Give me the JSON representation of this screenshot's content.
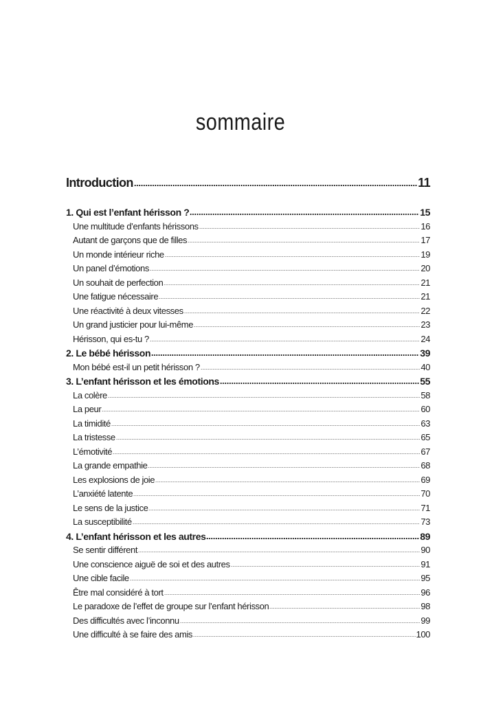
{
  "title": "sommaire",
  "introduction": {
    "label": "Introduction",
    "page": "11"
  },
  "entries": [
    {
      "type": "chapter",
      "label": "1. Qui est l’enfant hérisson ?",
      "page": "15"
    },
    {
      "type": "sub",
      "label": "Une multitude d’enfants hérissons",
      "page": "16"
    },
    {
      "type": "sub",
      "label": "Autant de garçons que de filles",
      "page": "17"
    },
    {
      "type": "sub",
      "label": "Un monde intérieur riche",
      "page": "19"
    },
    {
      "type": "sub",
      "label": "Un panel d’émotions",
      "page": "20"
    },
    {
      "type": "sub",
      "label": "Un souhait de perfection",
      "page": "21"
    },
    {
      "type": "sub",
      "label": "Une fatigue nécessaire",
      "page": "21"
    },
    {
      "type": "sub",
      "label": "Une réactivité à deux vitesses",
      "page": "22"
    },
    {
      "type": "sub",
      "label": "Un grand justicier pour lui-même",
      "page": "23"
    },
    {
      "type": "sub",
      "label": "Hérisson, qui es-tu ?",
      "page": "24"
    },
    {
      "type": "chapter",
      "label": "2. Le bébé hérisson",
      "page": "39"
    },
    {
      "type": "sub",
      "label": "Mon bébé est-il un petit hérisson ?",
      "page": "40"
    },
    {
      "type": "chapter",
      "label": "3. L’enfant hérisson et les émotions",
      "page": "55"
    },
    {
      "type": "sub",
      "label": "La colère",
      "page": "58"
    },
    {
      "type": "sub",
      "label": "La peur",
      "page": "60"
    },
    {
      "type": "sub",
      "label": "La timidité",
      "page": "63"
    },
    {
      "type": "sub",
      "label": "La tristesse",
      "page": "65"
    },
    {
      "type": "sub",
      "label": "L’émotivité",
      "page": "67"
    },
    {
      "type": "sub",
      "label": "La grande empathie",
      "page": "68"
    },
    {
      "type": "sub",
      "label": "Les explosions de joie",
      "page": "69"
    },
    {
      "type": "sub",
      "label": "L’anxiété latente",
      "page": "70"
    },
    {
      "type": "sub",
      "label": "Le sens de la justice",
      "page": "71"
    },
    {
      "type": "sub",
      "label": "La susceptibilité",
      "page": "73"
    },
    {
      "type": "chapter",
      "label": "4. L’enfant hérisson et les autres",
      "page": "89"
    },
    {
      "type": "sub",
      "label": "Se sentir différent",
      "page": "90"
    },
    {
      "type": "sub",
      "label": "Une conscience aiguë de soi et des autres",
      "page": "91"
    },
    {
      "type": "sub",
      "label": "Une cible facile",
      "page": "95"
    },
    {
      "type": "sub",
      "label": "Être mal considéré à tort",
      "page": "96"
    },
    {
      "type": "sub",
      "label": "Le paradoxe de l’effet de groupe sur l’enfant hérisson",
      "page": "98"
    },
    {
      "type": "sub",
      "label": "Des difficultés avec l’inconnu",
      "page": "99"
    },
    {
      "type": "sub",
      "label": "Une difficulté à se faire des amis",
      "page": "100"
    }
  ]
}
